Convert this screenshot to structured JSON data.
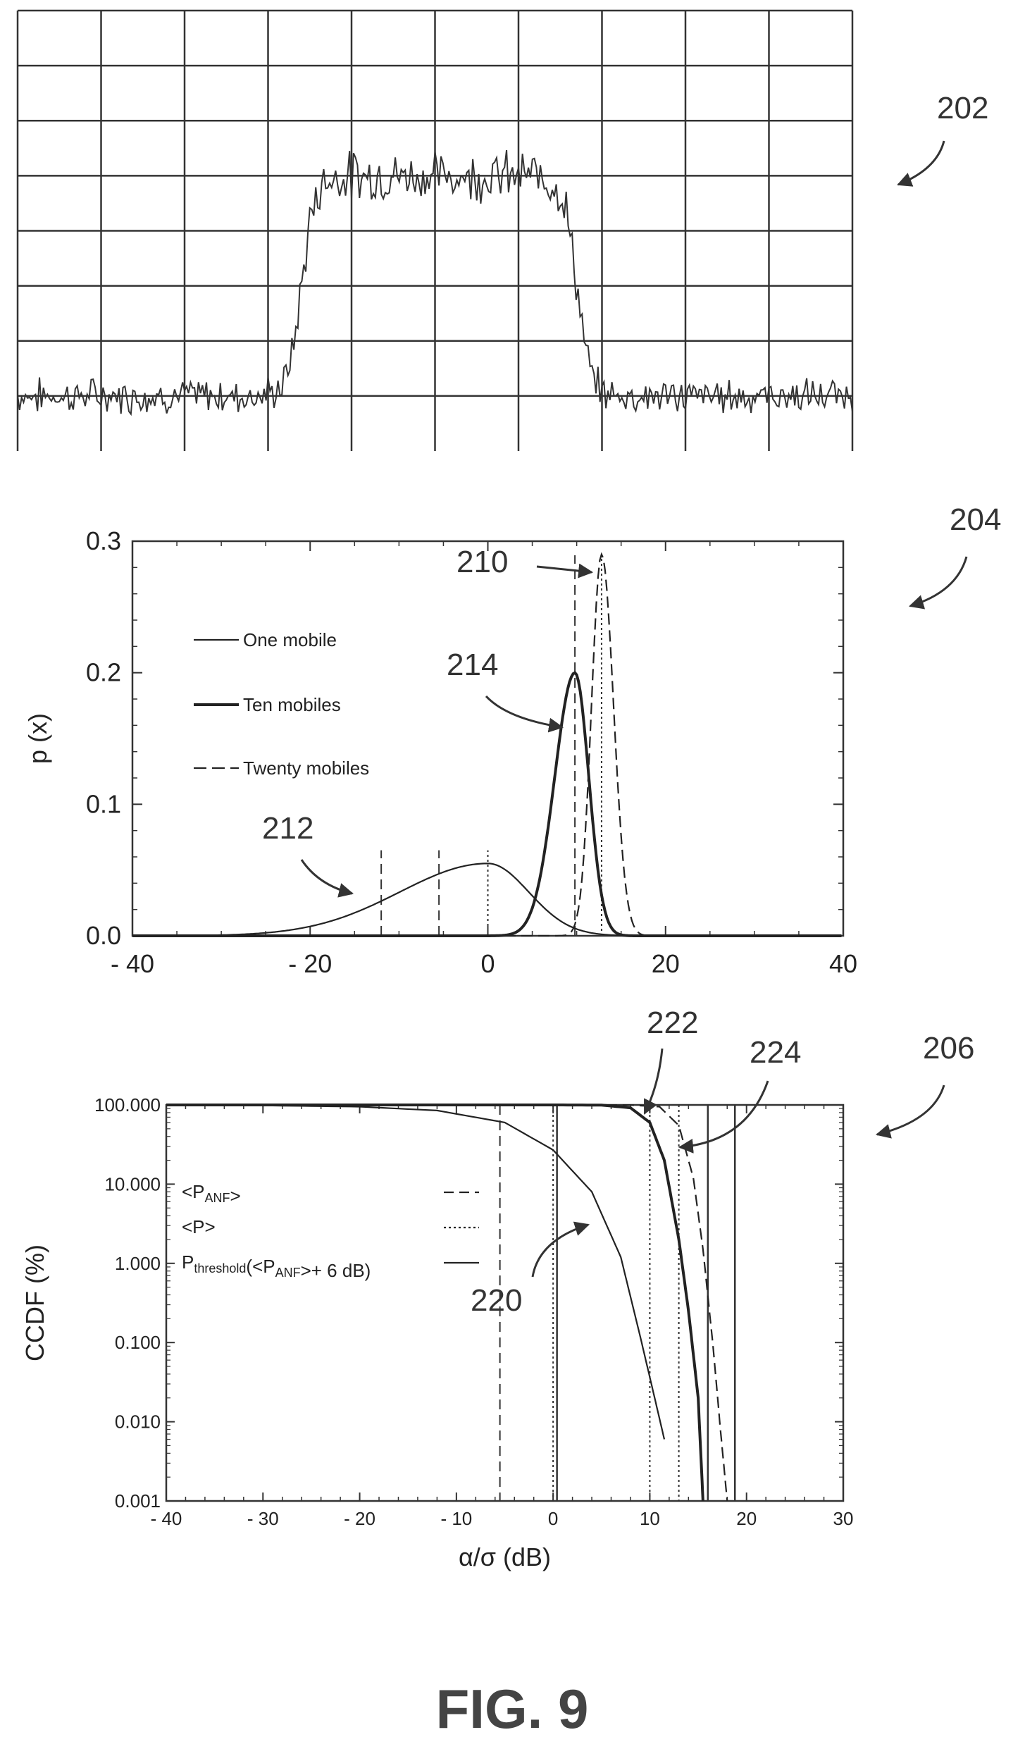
{
  "figure_label": "FIG. 9",
  "reference_numerals": {
    "spectrum_panel": "202",
    "pdf_panel": "204",
    "ccdf_panel": "206",
    "twenty_mobiles_curve": "210",
    "one_mobile_curve": "212",
    "ten_mobiles_curve": "214",
    "one_mobile_ccdf": "220",
    "ten_mobiles_ccdf": "222",
    "twenty_mobiles_ccdf": "224"
  },
  "chart_data": [
    {
      "id": "spectrum",
      "type": "line",
      "title": "",
      "xlabel": "",
      "ylabel": "",
      "grid": true,
      "grid_divisions": {
        "x": 10,
        "y": 8
      },
      "xlim": [
        0,
        10
      ],
      "ylim": [
        0,
        8
      ],
      "series": [
        {
          "noise_floor": 1.0,
          "noise_spread": 0.25,
          "signal_level": 5.0,
          "signal_spread": 0.35,
          "band_start": 3.4,
          "band_end": 6.7
        }
      ]
    },
    {
      "id": "pdf",
      "type": "line",
      "title": "",
      "xlabel": "",
      "ylabel": "p (x)",
      "xlim": [
        -40,
        40
      ],
      "ylim": [
        0,
        0.3
      ],
      "x_ticks": [
        -40,
        -20,
        0,
        20,
        40
      ],
      "x_tick_labels": [
        "- 40",
        "- 20",
        "0",
        "20",
        "40"
      ],
      "y_ticks": [
        0.0,
        0.1,
        0.2,
        0.3
      ],
      "y_tick_labels": [
        "0.0",
        "0.1",
        "0.2",
        "0.3"
      ],
      "legend_position": "left",
      "series": [
        {
          "name": "One mobile",
          "style": "solid-thin",
          "peak_x": 0,
          "peak_y": 0.055,
          "shape": "skewed-left"
        },
        {
          "name": "Ten mobiles",
          "style": "solid-thick",
          "peak_x": 9.8,
          "peak_y": 0.2,
          "shape": "skewed-left"
        },
        {
          "name": "Twenty mobiles",
          "style": "dashed",
          "peak_x": 12.8,
          "peak_y": 0.29,
          "shape": "skewed-left"
        }
      ],
      "vertical_markers": [
        {
          "x": -12,
          "style": "dashed"
        },
        {
          "x": -5.5,
          "style": "dashed"
        },
        {
          "x": 0,
          "style": "dotted"
        },
        {
          "x": 9.8,
          "style": "dashed"
        },
        {
          "x": 12.8,
          "style": "dotted"
        }
      ]
    },
    {
      "id": "ccdf",
      "type": "line",
      "title": "",
      "xlabel": "α/σ  (dB)",
      "ylabel": "CCDF (%)",
      "xlim": [
        -40,
        30
      ],
      "ylim": [
        0.001,
        100
      ],
      "yscale": "log",
      "x_ticks": [
        -40,
        -30,
        -20,
        -10,
        0,
        10,
        20,
        30
      ],
      "x_tick_labels": [
        "- 40",
        "- 30",
        "- 20",
        "- 10",
        "0",
        "10",
        "20",
        "30"
      ],
      "y_ticks": [
        0.001,
        0.01,
        0.1,
        1,
        10,
        100
      ],
      "y_tick_labels": [
        "0.001",
        "0.010",
        "0.100",
        "1.000",
        "10.000",
        "100.000"
      ],
      "legend_position": "left",
      "legend": [
        {
          "main": "<P",
          "sub": "ANF",
          "tail": ">",
          "style": "dashed"
        },
        {
          "main": "<P>",
          "sub": "",
          "tail": "",
          "style": "dotted"
        },
        {
          "main": "P",
          "sub": "threshold",
          "tail": "(<P",
          "sub2": "ANF",
          "tail2": ">+ 6 dB)",
          "style": "solid"
        }
      ],
      "series": [
        {
          "name": "One mobile",
          "points": [
            [
              -40,
              99.5
            ],
            [
              -30,
              98.5
            ],
            [
              -20,
              95
            ],
            [
              -12,
              85
            ],
            [
              -5,
              60
            ],
            [
              0,
              27
            ],
            [
              4,
              8
            ],
            [
              7,
              1.2
            ],
            [
              9,
              0.12
            ],
            [
              10.5,
              0.02
            ],
            [
              11.5,
              0.006
            ]
          ],
          "style": "solid-thin"
        },
        {
          "name": "Ten mobiles",
          "points": [
            [
              -40,
              100
            ],
            [
              0,
              100
            ],
            [
              5,
              99.5
            ],
            [
              8,
              92
            ],
            [
              10,
              60
            ],
            [
              11.5,
              20
            ],
            [
              13,
              2
            ],
            [
              14,
              0.25
            ],
            [
              15,
              0.02
            ],
            [
              15.5,
              0.001
            ]
          ],
          "style": "solid-thick"
        },
        {
          "name": "Twenty mobiles",
          "points": [
            [
              -40,
              100
            ],
            [
              0,
              100
            ],
            [
              8,
              99.8
            ],
            [
              11,
              95
            ],
            [
              13,
              55
            ],
            [
              14.5,
              12
            ],
            [
              15.5,
              1.5
            ],
            [
              16.5,
              0.1
            ],
            [
              17.3,
              0.008
            ],
            [
              18,
              0.001
            ]
          ],
          "style": "dashed"
        }
      ],
      "vertical_markers": [
        {
          "x": -5.5,
          "style": "dashed"
        },
        {
          "x": 0,
          "style": "dotted"
        },
        {
          "x": 0.4,
          "style": "solid"
        },
        {
          "x": 10,
          "style": "dotted"
        },
        {
          "x": 13,
          "style": "dotted"
        },
        {
          "x": 16,
          "style": "solid"
        },
        {
          "x": 18.8,
          "style": "solid"
        }
      ]
    }
  ]
}
